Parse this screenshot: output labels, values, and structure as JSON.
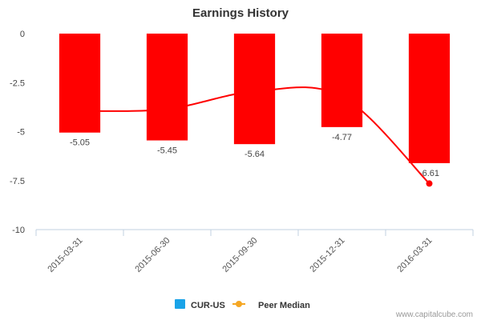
{
  "chart_data": {
    "type": "bar",
    "title": "Earnings History",
    "categories": [
      "2015-03-31",
      "2015-06-30",
      "2015-09-30",
      "2015-12-31",
      "2016-03-31"
    ],
    "series": [
      {
        "name": "CUR-US",
        "kind": "bar",
        "color": "#ff0000",
        "values": [
          -5.05,
          -5.45,
          -5.64,
          -4.77,
          -6.61
        ],
        "labels": [
          "-5.05",
          "-5.45",
          "-5.64",
          "-4.77",
          "-6.61"
        ]
      },
      {
        "name": "Peer Median",
        "kind": "line",
        "color": "#ff0000",
        "values": [
          -3.95,
          -3.85,
          -2.95,
          -3.2,
          -7.65
        ]
      }
    ],
    "y_ticks": [
      0,
      -2.5,
      -5,
      -7.5,
      -10
    ],
    "y_tick_labels": [
      "0",
      "-2.5",
      "-5",
      "-7.5",
      "-10"
    ],
    "ylim": [
      -10,
      0
    ],
    "xlabel": "",
    "ylabel": "",
    "grid": false
  },
  "legend": {
    "items": [
      {
        "label": "CUR-US",
        "color": "#1aa3e8",
        "icon": "square"
      },
      {
        "label": "Peer Median",
        "color": "#f5a623",
        "icon": "line-dot"
      }
    ]
  },
  "credit": "www.capitalcube.com"
}
